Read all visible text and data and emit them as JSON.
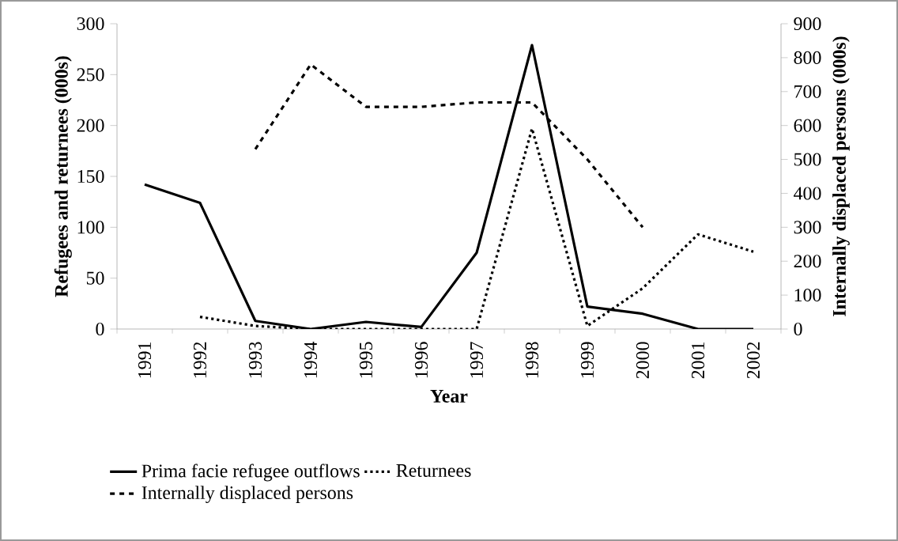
{
  "chart_data": {
    "type": "line",
    "xlabel": "Year",
    "ylabel": "Refugees and returnees (000s)",
    "y2label": "Internally displaced persons (000s)",
    "categories": [
      "1991",
      "1992",
      "1993",
      "1994",
      "1995",
      "1996",
      "1997",
      "1998",
      "1999",
      "2000",
      "2001",
      "2002"
    ],
    "series": [
      {
        "name": "Prima facie refugee outflows",
        "color": "#000000",
        "line_style": "solid",
        "values": [
          142,
          124,
          8,
          0,
          7,
          2,
          75,
          279,
          22,
          15,
          0,
          0
        ]
      },
      {
        "name": "Returnees",
        "color": "#000000",
        "line_style": "dotted",
        "values": [
          null,
          12,
          3,
          0,
          0,
          0,
          0,
          197,
          3,
          40,
          93,
          76
        ]
      },
      {
        "name": "Internally displaced persons",
        "color": "#000000",
        "line_style": "dashed",
        "axis": "y2",
        "values": [
          null,
          null,
          530,
          780,
          655,
          655,
          668,
          668,
          500,
          300,
          null,
          null
        ]
      }
    ],
    "ylim": [
      0,
      300
    ],
    "yticks": [
      0,
      50,
      100,
      150,
      200,
      250,
      300
    ],
    "y2lim": [
      0,
      900
    ],
    "y2ticks": [
      0,
      100,
      200,
      300,
      400,
      500,
      600,
      700,
      800,
      900
    ],
    "legend": "bottom",
    "grid": false,
    "marker": "none"
  }
}
